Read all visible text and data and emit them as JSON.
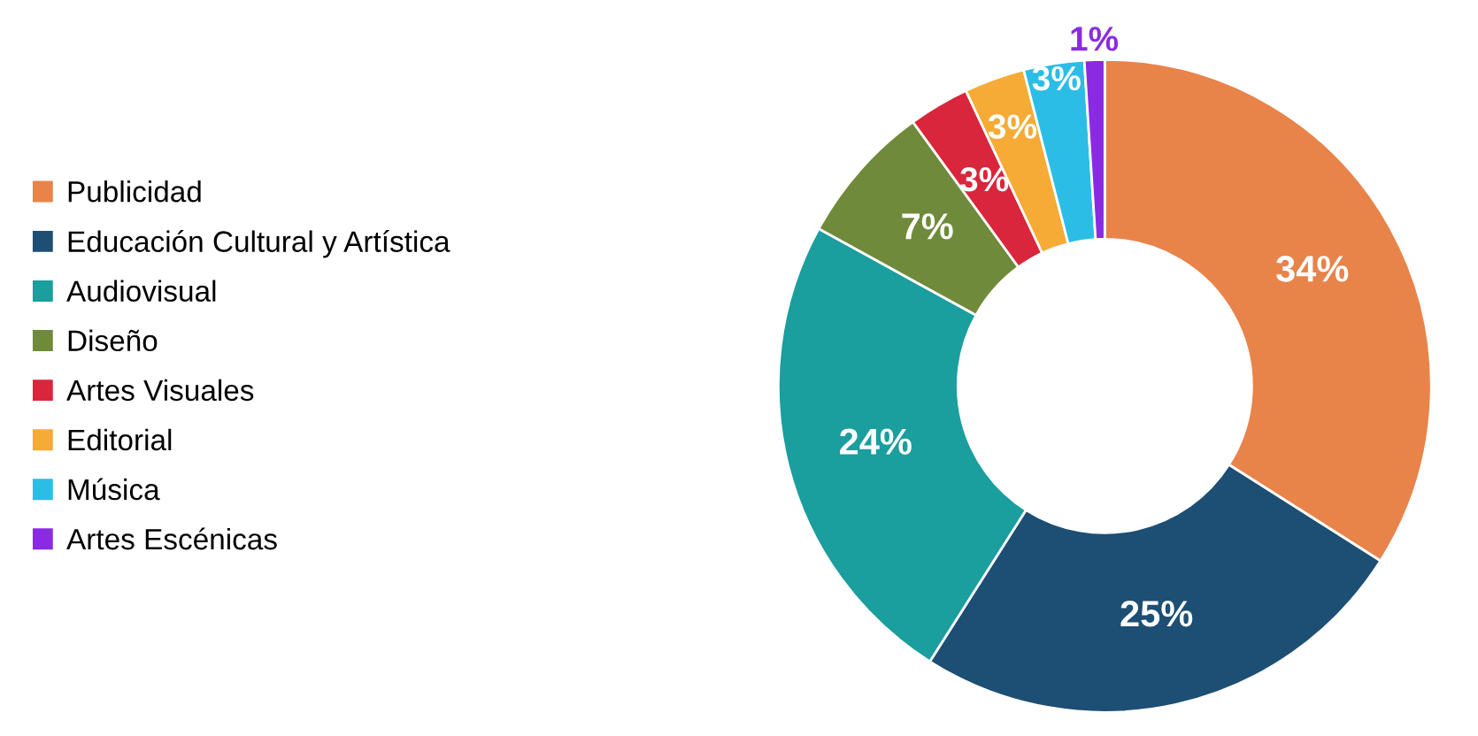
{
  "chart_data": {
    "type": "donut",
    "categories": [
      "Publicidad",
      "Educación Cultural y Artística",
      "Audiovisual",
      "Diseño",
      "Artes Visuales",
      "Editorial",
      "Música",
      "Artes Escénicas"
    ],
    "values": [
      34,
      25,
      24,
      7,
      3,
      3,
      3,
      1
    ],
    "colors": [
      "#e8834a",
      "#1d4e74",
      "#1a9e9e",
      "#6f8a3a",
      "#d9263c",
      "#f5ab35",
      "#2bbde6",
      "#8a2be2"
    ],
    "value_labels": [
      "34%",
      "25%",
      "24%",
      "7%",
      "3%",
      "3%",
      "3%",
      "1%"
    ],
    "legend": "left"
  }
}
